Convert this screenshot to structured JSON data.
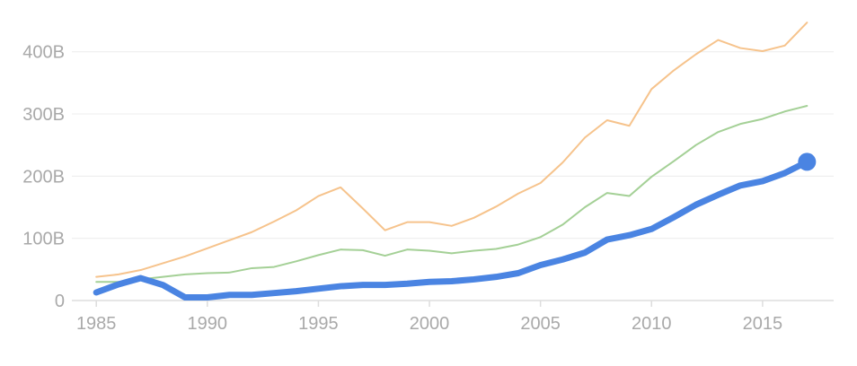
{
  "chart_data": {
    "type": "line",
    "title": "",
    "xlabel": "",
    "ylabel": "",
    "xlim": [
      1983.9,
      2018.2
    ],
    "ylim": [
      0,
      440
    ],
    "x_ticks": [
      1985,
      1990,
      1995,
      2000,
      2005,
      2010,
      2015
    ],
    "x_tick_labels": [
      "1985",
      "1990",
      "1995",
      "2000",
      "2005",
      "2010",
      "2015"
    ],
    "y_ticks": [
      0,
      100,
      200,
      300,
      400
    ],
    "y_tick_labels": [
      "0",
      "100B",
      "200B",
      "300B",
      "400B"
    ],
    "grid": true,
    "x": [
      1985,
      1986,
      1987,
      1988,
      1989,
      1990,
      1991,
      1992,
      1993,
      1994,
      1995,
      1996,
      1997,
      1998,
      1999,
      2000,
      2001,
      2002,
      2003,
      2004,
      2005,
      2006,
      2007,
      2008,
      2009,
      2010,
      2011,
      2012,
      2013,
      2014,
      2015,
      2016,
      2017
    ],
    "series": [
      {
        "color": "#f6c38c",
        "emphasis": false,
        "values": [
          38,
          42,
          49,
          60,
          71,
          84,
          97,
          110,
          127,
          145,
          168,
          182,
          148,
          113,
          126,
          126,
          120,
          133,
          151,
          172,
          189,
          222,
          262,
          290,
          281,
          340,
          370,
          396,
          419,
          406,
          401,
          410,
          447
        ]
      },
      {
        "color": "#a4d096",
        "emphasis": false,
        "values": [
          30,
          30,
          34,
          38,
          42,
          44,
          45,
          52,
          54,
          63,
          73,
          82,
          81,
          72,
          82,
          80,
          76,
          80,
          83,
          90,
          102,
          122,
          150,
          173,
          168,
          199,
          224,
          250,
          271,
          284,
          292,
          304,
          313
        ]
      },
      {
        "color": "#4a84e2",
        "emphasis": true,
        "values": [
          13,
          26,
          36,
          25,
          5,
          5,
          9,
          9,
          12,
          15,
          19,
          23,
          25,
          25,
          27,
          30,
          31,
          34,
          38,
          44,
          57,
          66,
          77,
          98,
          105,
          115,
          134,
          154,
          170,
          185,
          192,
          205,
          223
        ]
      }
    ]
  }
}
